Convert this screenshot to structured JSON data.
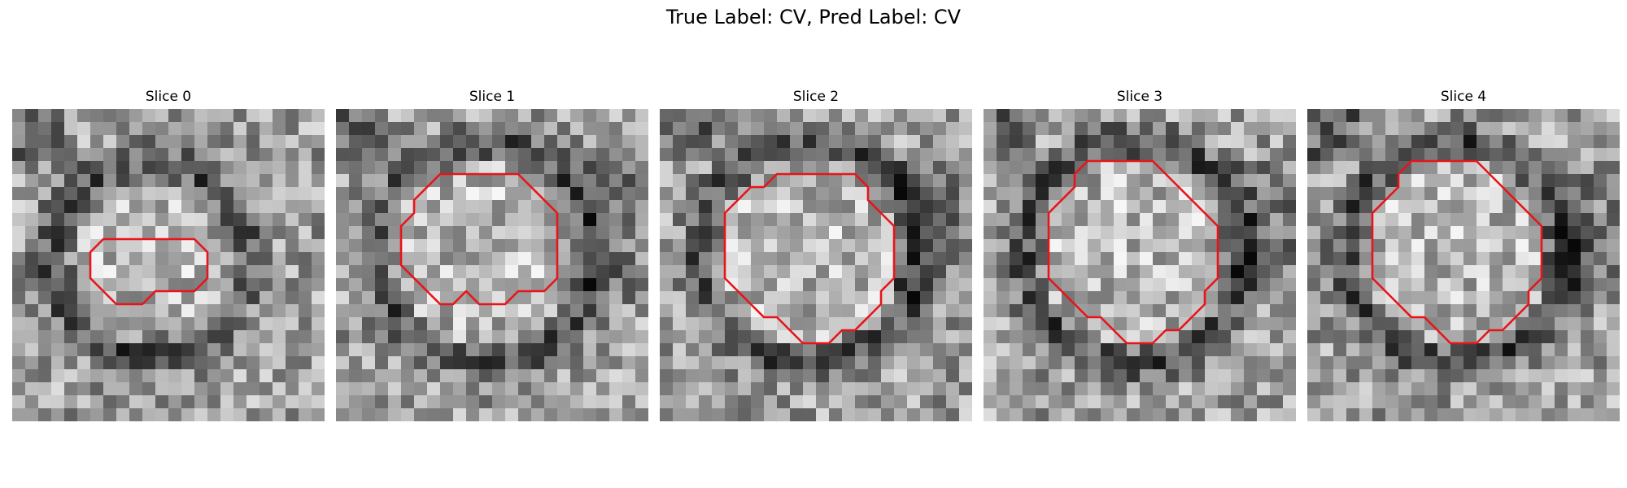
{
  "figure": {
    "title": "True Label: CV, Pred Label: CV"
  },
  "colors": {
    "contour": "#e8141a",
    "background": "#ffffff"
  },
  "slices": [
    {
      "title": "Slice 0",
      "contour": [
        [
          7,
          10
        ],
        [
          6,
          11
        ],
        [
          6,
          13
        ],
        [
          7,
          14
        ],
        [
          8,
          15
        ],
        [
          10,
          15
        ],
        [
          11,
          14
        ],
        [
          14,
          14
        ],
        [
          15,
          13
        ],
        [
          15,
          11
        ],
        [
          14,
          10
        ]
      ]
    },
    {
      "title": "Slice 1",
      "contour": [
        [
          8,
          5
        ],
        [
          7,
          6
        ],
        [
          6,
          7
        ],
        [
          6,
          8
        ],
        [
          5,
          9
        ],
        [
          5,
          12
        ],
        [
          6,
          13
        ],
        [
          7,
          14
        ],
        [
          8,
          15
        ],
        [
          9,
          15
        ],
        [
          10,
          14
        ],
        [
          11,
          15
        ],
        [
          13,
          15
        ],
        [
          14,
          14
        ],
        [
          16,
          14
        ],
        [
          17,
          13
        ],
        [
          17,
          8
        ],
        [
          16,
          7
        ],
        [
          15,
          6
        ],
        [
          14,
          5
        ]
      ]
    },
    {
      "title": "Slice 2",
      "contour": [
        [
          9,
          5
        ],
        [
          8,
          6
        ],
        [
          7,
          6
        ],
        [
          6,
          7
        ],
        [
          5,
          8
        ],
        [
          5,
          13
        ],
        [
          6,
          14
        ],
        [
          7,
          15
        ],
        [
          8,
          16
        ],
        [
          9,
          16
        ],
        [
          10,
          17
        ],
        [
          11,
          18
        ],
        [
          13,
          18
        ],
        [
          14,
          17
        ],
        [
          15,
          17
        ],
        [
          16,
          16
        ],
        [
          17,
          15
        ],
        [
          17,
          14
        ],
        [
          18,
          13
        ],
        [
          18,
          9
        ],
        [
          17,
          8
        ],
        [
          16,
          7
        ],
        [
          16,
          6
        ],
        [
          15,
          5
        ]
      ]
    },
    {
      "title": "Slice 3",
      "contour": [
        [
          8,
          4
        ],
        [
          7,
          5
        ],
        [
          7,
          6
        ],
        [
          6,
          7
        ],
        [
          5,
          8
        ],
        [
          5,
          13
        ],
        [
          6,
          14
        ],
        [
          7,
          15
        ],
        [
          8,
          16
        ],
        [
          9,
          16
        ],
        [
          10,
          17
        ],
        [
          11,
          18
        ],
        [
          13,
          18
        ],
        [
          14,
          17
        ],
        [
          15,
          17
        ],
        [
          16,
          16
        ],
        [
          17,
          15
        ],
        [
          17,
          14
        ],
        [
          18,
          13
        ],
        [
          18,
          9
        ],
        [
          17,
          8
        ],
        [
          16,
          7
        ],
        [
          15,
          6
        ],
        [
          14,
          5
        ],
        [
          13,
          4
        ]
      ]
    },
    {
      "title": "Slice 4",
      "contour": [
        [
          8,
          4
        ],
        [
          7,
          5
        ],
        [
          7,
          6
        ],
        [
          6,
          7
        ],
        [
          5,
          8
        ],
        [
          5,
          13
        ],
        [
          6,
          14
        ],
        [
          7,
          15
        ],
        [
          8,
          16
        ],
        [
          9,
          16
        ],
        [
          10,
          17
        ],
        [
          11,
          18
        ],
        [
          13,
          18
        ],
        [
          14,
          17
        ],
        [
          15,
          17
        ],
        [
          16,
          16
        ],
        [
          17,
          15
        ],
        [
          17,
          14
        ],
        [
          18,
          13
        ],
        [
          18,
          9
        ],
        [
          17,
          8
        ],
        [
          16,
          7
        ],
        [
          15,
          6
        ],
        [
          14,
          5
        ],
        [
          13,
          4
        ]
      ]
    }
  ]
}
